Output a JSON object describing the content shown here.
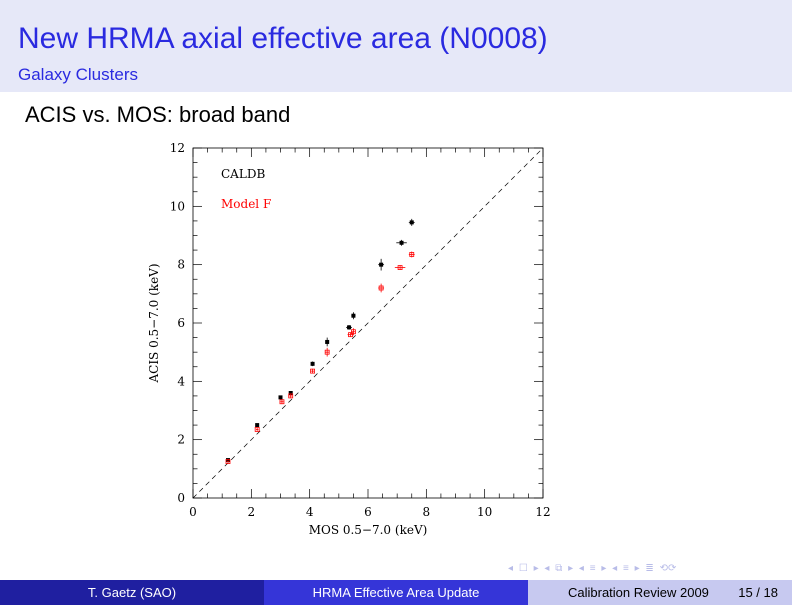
{
  "slide": {
    "title": "New HRMA axial effective area (N0008)",
    "subtitle": "Galaxy Clusters",
    "section": "ACIS vs. MOS: broad band"
  },
  "footer": {
    "author": "T. Gaetz  (SAO)",
    "talk": "HRMA Effective Area Update",
    "venue": "Calibration Review 2009",
    "page": "15 / 18"
  },
  "nav_icons": [
    "nav-frame-left-icon",
    "nav-frame-right-icon",
    "nav-subsection-left-icon",
    "nav-subsection-right-icon",
    "nav-section-left-icon",
    "nav-section-right-icon",
    "nav-align-icon",
    "nav-search-icon"
  ],
  "colors": {
    "title": "#2a2ae0",
    "caldb": "#000000",
    "model_f": "#ff0000"
  },
  "chart_data": {
    "type": "scatter",
    "xlabel": "MOS 0.5−7.0 (keV)",
    "ylabel": "ACIS 0.5−7.0 (keV)",
    "xlim": [
      0,
      12
    ],
    "ylim": [
      0,
      12
    ],
    "xticks": [
      "0",
      "2",
      "4",
      "6",
      "8",
      "10",
      "12"
    ],
    "yticks": [
      "0",
      "2",
      "4",
      "6",
      "8",
      "10",
      "12"
    ],
    "reference_line": "y = x (dashed)",
    "series": [
      {
        "name": "CALDB",
        "color": "#000000",
        "points": [
          {
            "x": 1.2,
            "y": 1.3,
            "xerr": 0.03,
            "yerr": 0.04
          },
          {
            "x": 2.2,
            "y": 2.5,
            "xerr": 0.04,
            "yerr": 0.05
          },
          {
            "x": 3.0,
            "y": 3.45,
            "xerr": 0.05,
            "yerr": 0.06
          },
          {
            "x": 3.35,
            "y": 3.6,
            "xerr": 0.05,
            "yerr": 0.06
          },
          {
            "x": 4.1,
            "y": 4.6,
            "xerr": 0.05,
            "yerr": 0.08
          },
          {
            "x": 4.6,
            "y": 5.35,
            "xerr": 0.06,
            "yerr": 0.15
          },
          {
            "x": 5.35,
            "y": 5.85,
            "xerr": 0.1,
            "yerr": 0.08
          },
          {
            "x": 5.5,
            "y": 6.25,
            "xerr": 0.07,
            "yerr": 0.12
          },
          {
            "x": 6.45,
            "y": 8.0,
            "xerr": 0.1,
            "yerr": 0.2
          },
          {
            "x": 7.15,
            "y": 8.75,
            "xerr": 0.18,
            "yerr": 0.1
          },
          {
            "x": 7.5,
            "y": 9.45,
            "xerr": 0.1,
            "yerr": 0.12
          }
        ]
      },
      {
        "name": "Model F",
        "color": "#ff0000",
        "points": [
          {
            "x": 1.2,
            "y": 1.25,
            "xerr": 0.03,
            "yerr": 0.04
          },
          {
            "x": 2.2,
            "y": 2.35,
            "xerr": 0.04,
            "yerr": 0.05
          },
          {
            "x": 3.05,
            "y": 3.3,
            "xerr": 0.05,
            "yerr": 0.06
          },
          {
            "x": 3.35,
            "y": 3.5,
            "xerr": 0.05,
            "yerr": 0.06
          },
          {
            "x": 4.1,
            "y": 4.35,
            "xerr": 0.05,
            "yerr": 0.08
          },
          {
            "x": 4.6,
            "y": 5.0,
            "xerr": 0.06,
            "yerr": 0.15
          },
          {
            "x": 5.4,
            "y": 5.6,
            "xerr": 0.1,
            "yerr": 0.08
          },
          {
            "x": 5.5,
            "y": 5.7,
            "xerr": 0.07,
            "yerr": 0.12
          },
          {
            "x": 6.45,
            "y": 7.2,
            "xerr": 0.1,
            "yerr": 0.15
          },
          {
            "x": 7.1,
            "y": 7.9,
            "xerr": 0.18,
            "yerr": 0.08
          },
          {
            "x": 7.5,
            "y": 8.35,
            "xerr": 0.1,
            "yerr": 0.1
          }
        ]
      }
    ]
  }
}
